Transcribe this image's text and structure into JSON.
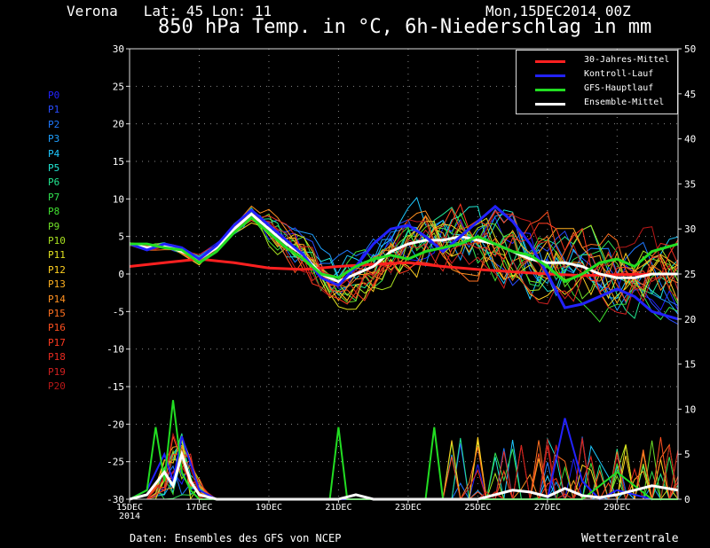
{
  "header": {
    "location": "Verona   Lat: 45 Lon: 11",
    "run": "Mon,15DEC2014 00Z",
    "title": "850 hPa Temp. in °C, 6h-Niederschlag in mm"
  },
  "footer": {
    "source": "Daten: Ensembles des GFS von NCEP",
    "brand": "Wetterzentrale"
  },
  "members": [
    "P0",
    "P1",
    "P2",
    "P3",
    "P4",
    "P5",
    "P6",
    "P7",
    "P8",
    "P9",
    "P10",
    "P11",
    "P12",
    "P13",
    "P14",
    "P15",
    "P16",
    "P17",
    "P18",
    "P19",
    "P20"
  ],
  "member_colors": [
    "#2222ff",
    "#2a4cff",
    "#1e78ff",
    "#1ea0ff",
    "#1ec8ff",
    "#20e6d2",
    "#22e690",
    "#30e050",
    "#40e030",
    "#70e028",
    "#a8e020",
    "#e0e020",
    "#ffd020",
    "#ffb020",
    "#ff9020",
    "#ff7020",
    "#ff5020",
    "#ff3a20",
    "#e82a20",
    "#d02020",
    "#b81818"
  ],
  "legend": [
    {
      "label": "30-Jahres-Mittel",
      "color": "#ff2020"
    },
    {
      "label": "Kontroll-Lauf",
      "color": "#2222ff"
    },
    {
      "label": "GFS-Hauptlauf",
      "color": "#22dd22"
    },
    {
      "label": "Ensemble-Mittel",
      "color": "#ffffff"
    }
  ],
  "chart_data": {
    "type": "line",
    "title": "850 hPa Temp. in °C, 6h-Niederschlag in mm",
    "x_tick_labels": [
      "15DEC\n2014",
      "17DEC",
      "19DEC",
      "21DEC",
      "23DEC",
      "25DEC",
      "27DEC",
      "29DEC"
    ],
    "ylim_left": [
      -30,
      30
    ],
    "yticks_left": [
      30,
      25,
      20,
      15,
      10,
      5,
      0,
      -5,
      -10,
      -15,
      -20,
      -25,
      -30
    ],
    "ylim_right": [
      0,
      50
    ],
    "yticks_right": [
      50,
      45,
      40,
      35,
      30,
      25,
      20,
      15,
      10,
      5,
      0
    ],
    "grid": true,
    "legend_position": "top-right",
    "days": 15.75,
    "temperature_series": [
      {
        "name": "30-Jahres-Mittel",
        "color": "#ff2020",
        "x": [
          0,
          1,
          2,
          3,
          4,
          5,
          6,
          7,
          8,
          9,
          10,
          11,
          12,
          13,
          14,
          15,
          15.75
        ],
        "y": [
          1,
          1.5,
          2,
          1.5,
          0.8,
          0.6,
          1,
          1.3,
          1.5,
          1,
          0.6,
          0.3,
          0,
          -0.2,
          -0.1,
          0,
          0
        ]
      },
      {
        "name": "Ensemble-Mittel",
        "color": "#ffffff",
        "x": [
          0,
          0.5,
          1,
          1.5,
          2,
          2.5,
          3,
          3.5,
          4,
          4.5,
          5,
          5.5,
          6,
          6.5,
          7,
          7.5,
          8,
          8.5,
          9,
          9.5,
          10,
          10.5,
          11,
          11.5,
          12,
          12.5,
          13,
          13.5,
          14,
          14.5,
          15,
          15.75
        ],
        "y": [
          4,
          3.5,
          3.8,
          3,
          2,
          3.5,
          6,
          8,
          6,
          4,
          2.5,
          0,
          -1,
          0,
          1,
          3,
          4,
          4.5,
          4.5,
          5,
          4.5,
          4,
          3,
          2,
          1.5,
          1.5,
          1,
          0,
          -0.5,
          -0.5,
          0,
          0
        ]
      },
      {
        "name": "Kontroll-Lauf",
        "color": "#2222ff",
        "x": [
          0,
          0.5,
          1,
          1.5,
          2,
          2.5,
          3,
          3.5,
          4,
          4.5,
          5,
          5.5,
          6,
          6.5,
          7,
          7.5,
          8,
          8.5,
          9,
          9.5,
          10,
          10.5,
          11,
          11.5,
          12,
          12.5,
          13,
          13.5,
          14,
          14.5,
          15,
          15.75
        ],
        "y": [
          4,
          3.2,
          4,
          3.5,
          2,
          3.8,
          6.5,
          8.5,
          6.5,
          4.5,
          2.5,
          -0.5,
          -1.5,
          1,
          4,
          6,
          6.5,
          5,
          3,
          5,
          7,
          9,
          7,
          4,
          0,
          -4.5,
          -4,
          -3,
          -2,
          -3,
          -5,
          -6
        ]
      },
      {
        "name": "GFS-Hauptlauf",
        "color": "#22dd22",
        "x": [
          0,
          0.5,
          1,
          1.5,
          2,
          2.5,
          3,
          3.5,
          4,
          4.5,
          5,
          5.5,
          6,
          6.5,
          7,
          7.5,
          8,
          8.5,
          9,
          9.5,
          10,
          10.5,
          11,
          11.5,
          12,
          12.5,
          13,
          13.5,
          14,
          14.5,
          15,
          15.75
        ],
        "y": [
          4,
          4,
          3.5,
          3.2,
          1.5,
          3,
          5.5,
          7.5,
          5.5,
          3.5,
          2,
          0,
          -0.5,
          1,
          2,
          2.5,
          2,
          3,
          3.5,
          4,
          5,
          4,
          3,
          2.5,
          1,
          -1,
          0,
          1.5,
          2,
          1,
          3,
          4
        ]
      }
    ],
    "precipitation_series": [
      {
        "name": "Kontroll-Lauf",
        "x": [
          0,
          0.5,
          1,
          1.25,
          1.5,
          1.75,
          2,
          2.5,
          3,
          6,
          9,
          10,
          11,
          12,
          12.5,
          13,
          13.5,
          14,
          15,
          15.75
        ],
        "y": [
          0,
          1,
          5,
          2,
          7,
          4,
          1,
          0,
          0,
          0,
          0,
          0,
          0,
          0,
          9,
          2,
          0,
          1,
          0,
          0
        ]
      },
      {
        "name": "GFS-Hauptlauf",
        "x": [
          0,
          0.5,
          0.75,
          1,
          1.25,
          1.5,
          1.75,
          2,
          2.5,
          3,
          5.75,
          6,
          6.25,
          7,
          8.5,
          8.75,
          9,
          10,
          11.5,
          12,
          12.5,
          13,
          14,
          15,
          15.75
        ],
        "y": [
          0,
          1,
          8,
          2,
          11,
          3,
          1,
          0,
          0,
          0,
          0,
          8,
          0,
          0,
          0,
          8,
          0,
          0,
          0,
          0,
          0,
          0,
          3,
          0,
          0
        ]
      },
      {
        "name": "Ensemble-Mittel",
        "x": [
          0,
          0.5,
          1,
          1.25,
          1.5,
          1.75,
          2,
          2.5,
          3,
          6,
          6.5,
          7,
          9,
          10,
          11,
          11.5,
          12,
          12.5,
          13,
          13.5,
          14,
          14.5,
          15,
          15.75
        ],
        "y": [
          0,
          0.5,
          3,
          1.5,
          5,
          2,
          0.5,
          0,
          0,
          0,
          0.5,
          0,
          0,
          0,
          1,
          0.8,
          0.3,
          1.2,
          0.4,
          0.2,
          0.5,
          1,
          1.5,
          1
        ]
      }
    ]
  }
}
